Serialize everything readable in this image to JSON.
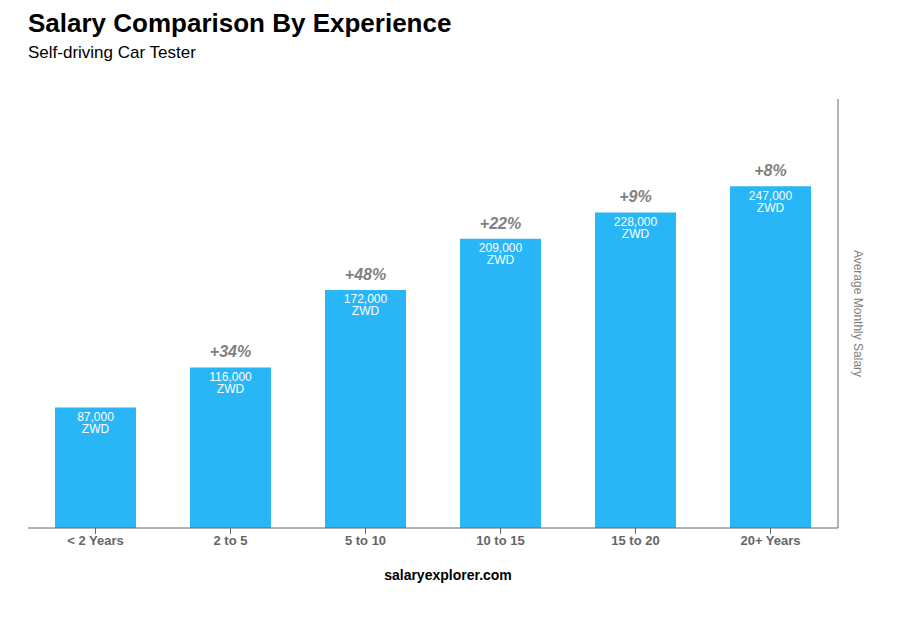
{
  "chart_data": {
    "type": "bar",
    "title": "Salary Comparison By Experience",
    "subtitle": "Self-driving Car Tester",
    "categories": [
      "< 2 Years",
      "2 to 5",
      "5 to 10",
      "10 to 15",
      "15 to 20",
      "20+ Years"
    ],
    "values": [
      87000,
      116000,
      172000,
      209000,
      228000,
      247000
    ],
    "value_labels": [
      "87,000 ZWD",
      "116,000 ZWD",
      "172,000 ZWD",
      "209,000 ZWD",
      "228,000 ZWD",
      "247,000 ZWD"
    ],
    "data_labels": true,
    "annotations": [
      "+34%",
      "+48%",
      "+22%",
      "+9%",
      "+8%"
    ],
    "ylabel": "Average Monthly Salary",
    "footer": [
      "salary",
      "explorer.com"
    ],
    "color": "#29B6F6",
    "ylim": [
      0,
      310000
    ],
    "grid": false,
    "tick_labels": "x"
  }
}
